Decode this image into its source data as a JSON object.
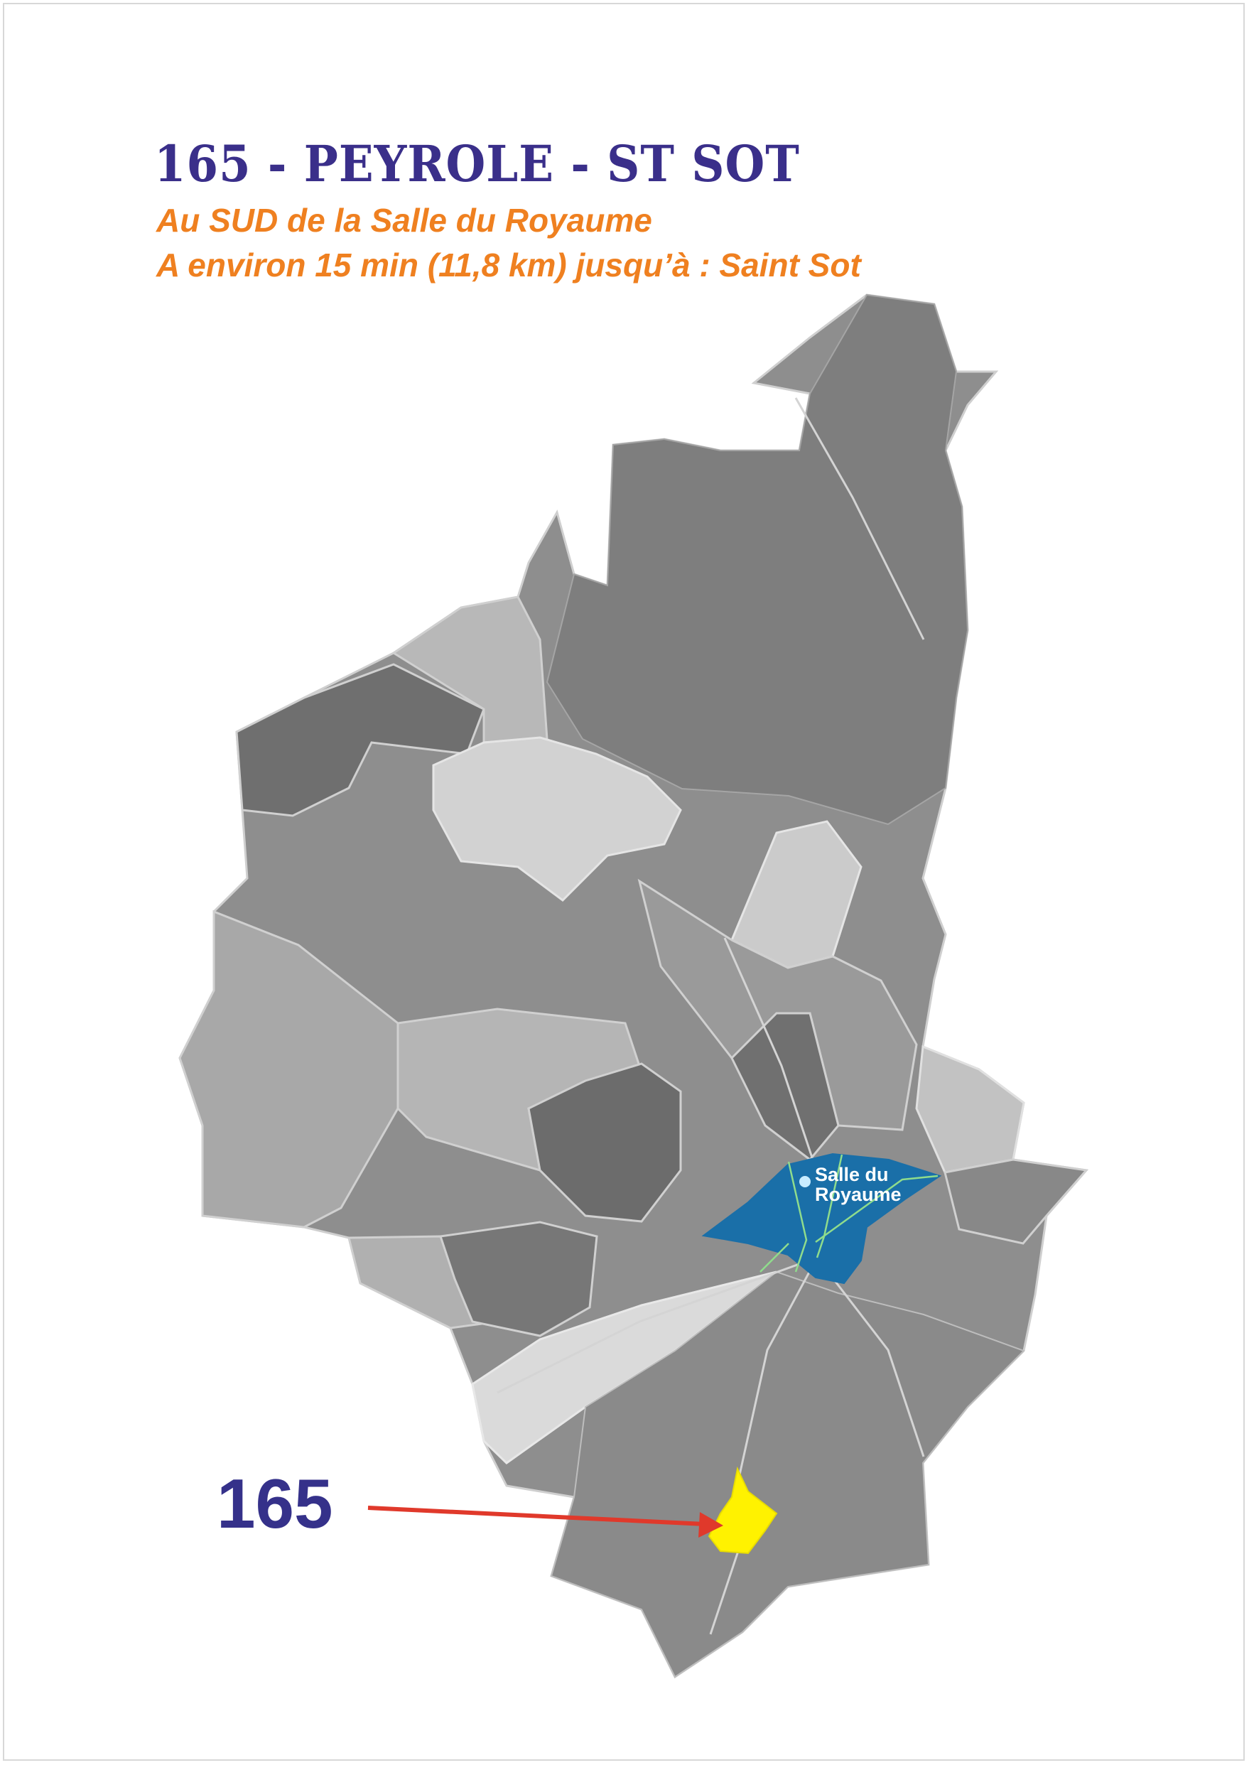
{
  "title": "165 - PEYROLE - ST SOT",
  "subtitle_lines": [
    "Au SUD de la Salle du Royaume",
    "A environ 15 min (11,8 km) jusqu’à : Saint Sot"
  ],
  "map": {
    "landmark_label_lines": [
      "Salle du",
      "Royaume"
    ],
    "territory_number": "165",
    "colors": {
      "highlight_hall_area": "#1a6fa8",
      "territory": "#fff200",
      "arrow": "#e0392b",
      "title": "#3a2f8a",
      "subtitle": "#ef8020"
    }
  }
}
